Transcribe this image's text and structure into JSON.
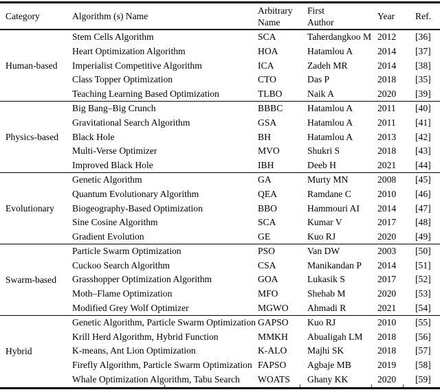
{
  "table": {
    "header": {
      "columns": [
        "Category",
        "Algorithm (s) Name",
        "Arbitrary\nName",
        "First\nAuthor",
        "Year",
        "Ref."
      ]
    },
    "sections": [
      {
        "category": "Human-based",
        "rows": [
          {
            "name": "Stem Cells Algorithm",
            "abbr": "SCA",
            "author": "Taherdangkoo M",
            "year": "2012",
            "ref": "[36]"
          },
          {
            "name": "Heart Optimization Algorithm",
            "abbr": "HOA",
            "author": "Hatamlou A",
            "year": "2014",
            "ref": "[37]"
          },
          {
            "name": "Imperialist Competitive Algorithm",
            "abbr": "ICA",
            "author": "Zadeh MR",
            "year": "2014",
            "ref": "[38]"
          },
          {
            "name": "Class Topper Optimization",
            "abbr": "CTO",
            "author": "Das P",
            "year": "2018",
            "ref": "[35]"
          },
          {
            "name": "Teaching Learning Based Optimization",
            "abbr": "TLBO",
            "author": "Naik A",
            "year": "2020",
            "ref": "[39]"
          }
        ]
      },
      {
        "category": "Physics-based",
        "rows": [
          {
            "name": "Big Bang–Big Crunch",
            "abbr": "BBBC",
            "author": "Hatamlou A",
            "year": "2011",
            "ref": "[40]"
          },
          {
            "name": "Gravitational Search Algorithm",
            "abbr": "GSA",
            "author": "Hatamlou A",
            "year": "2011",
            "ref": "[41]"
          },
          {
            "name": "Black Hole",
            "abbr": "BH",
            "author": "Hatamlou A",
            "year": "2013",
            "ref": "[42]"
          },
          {
            "name": "Multi-Verse Optimizer",
            "abbr": "MVO",
            "author": "Shukri S",
            "year": "2018",
            "ref": "[43]"
          },
          {
            "name": "Improved Black Hole",
            "abbr": "IBH",
            "author": "Deeb H",
            "year": "2021",
            "ref": "[44]"
          }
        ]
      },
      {
        "category": "Evolutionary",
        "rows": [
          {
            "name": "Genetic Algorithm",
            "abbr": "GA",
            "author": "Murty MN",
            "year": "2008",
            "ref": "[45]"
          },
          {
            "name": "Quantum Evolutionary Algorithm",
            "abbr": "QEA",
            "author": "Ramdane C",
            "year": "2010",
            "ref": "[46]"
          },
          {
            "name": "Biogeography-Based Optimization",
            "abbr": "BBO",
            "author": "Hammouri AI",
            "year": "2014",
            "ref": "[47]"
          },
          {
            "name": "Sine Cosine Algorithm",
            "abbr": "SCA",
            "author": "Kumar V",
            "year": "2017",
            "ref": "[48]"
          },
          {
            "name": "Gradient Evolution",
            "abbr": "GE",
            "author": "Kuo RJ",
            "year": "2020",
            "ref": "[49]"
          }
        ]
      },
      {
        "category": "Swarm-based",
        "rows": [
          {
            "name": "Particle Swarm Optimization",
            "abbr": "PSO",
            "author": "Van DW",
            "year": "2003",
            "ref": "[50]"
          },
          {
            "name": "Cuckoo Search Algorithm",
            "abbr": "CSA",
            "author": "Manikandan P",
            "year": "2014",
            "ref": "[51]"
          },
          {
            "name": "Grasshopper Optimization Algorithm",
            "abbr": "GOA",
            "author": "Lukasik S",
            "year": "2017",
            "ref": "[52]"
          },
          {
            "name": "Moth–Flame Optimization",
            "abbr": "MFO",
            "author": "Shehab M",
            "year": "2020",
            "ref": "[53]"
          },
          {
            "name": "Modified Grey Wolf Optimizer",
            "abbr": "MGWO",
            "author": "Ahmadi R",
            "year": "2021",
            "ref": "[54]"
          }
        ]
      },
      {
        "category": "Hybrid",
        "rows": [
          {
            "name": "Genetic Algorithm, Particle Swarm Optimization",
            "abbr": "GAPSO",
            "author": "Kuo RJ",
            "year": "2010",
            "ref": "[55]"
          },
          {
            "name": "Krill Herd Algorithm, Hybrid Function",
            "abbr": "MMKH",
            "author": "Abualigah LM",
            "year": "2018",
            "ref": "[56]"
          },
          {
            "name": "K-means, Ant Lion Optimization",
            "abbr": "K-ALO",
            "author": "Majhi SK",
            "year": "2018",
            "ref": "[57]"
          },
          {
            "name": "Firefly Algorithm, Particle Swarm Optimization",
            "abbr": "FAPSO",
            "author": "Agbaje MB",
            "year": "2019",
            "ref": "[58]"
          },
          {
            "name": "Whale Optimization Algorithm, Tabu Search",
            "abbr": "WOATS",
            "author": "Ghany KK",
            "year": "2020",
            "ref": "[59]"
          }
        ]
      }
    ]
  },
  "colors": {
    "text": "#000000",
    "background": "#ffffff",
    "border": "#000000"
  }
}
